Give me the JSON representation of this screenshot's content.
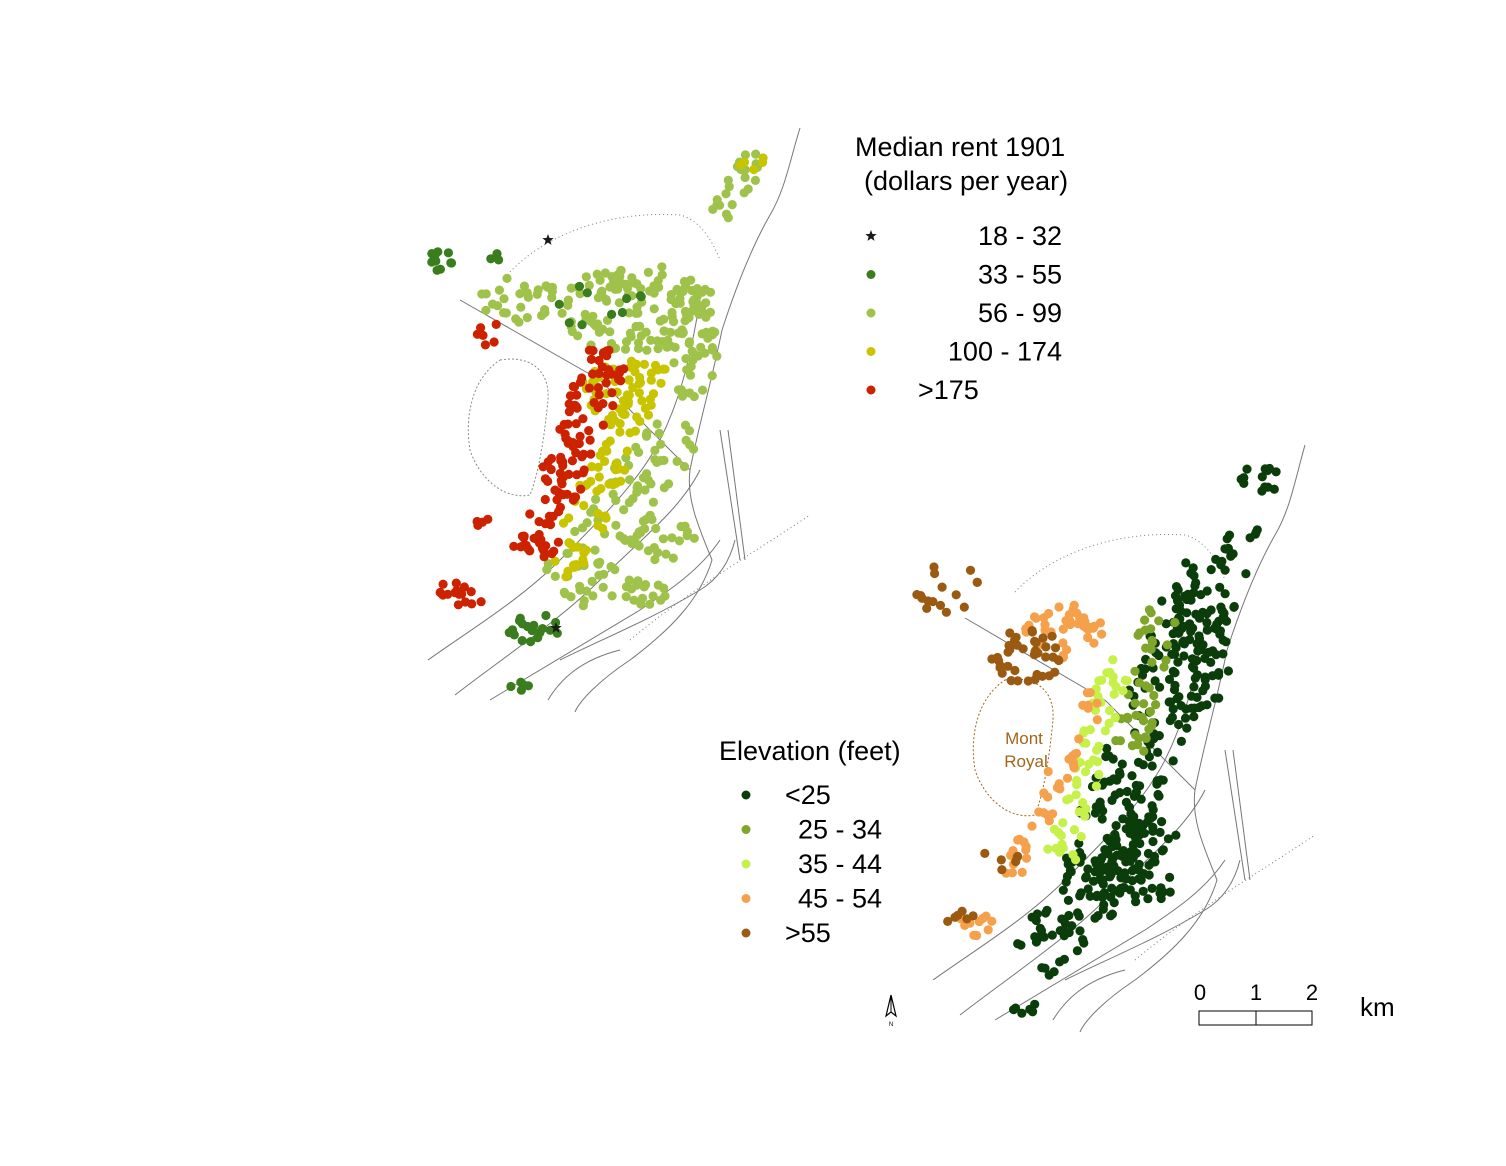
{
  "rent_legend": {
    "title_line1": "Median rent 1901",
    "title_line2": "(dollars per year)",
    "items": [
      {
        "label": "18 -   32",
        "color": "#1a1a1a",
        "symbol": "star"
      },
      {
        "label": "33 -   55",
        "color": "#3a7d1e",
        "symbol": "dot"
      },
      {
        "label": "56 -   99",
        "color": "#9fc24a",
        "symbol": "dot"
      },
      {
        "label": "100 - 174",
        "color": "#c8c400",
        "symbol": "dot"
      },
      {
        "label": ">175",
        "color": "#cc2200",
        "symbol": "dot"
      }
    ]
  },
  "elevation_legend": {
    "title": "Elevation (feet)",
    "items": [
      {
        "label": "<25",
        "color": "#0b3d0b"
      },
      {
        "label": "25 - 34",
        "color": "#7fa52a"
      },
      {
        "label": "35 - 44",
        "color": "#c6f04a"
      },
      {
        "label": "45 - 54",
        "color": "#f5a04a"
      },
      {
        "label": ">55",
        "color": "#9a5a12"
      }
    ]
  },
  "mountain_label_line1": "Mont",
  "mountain_label_line2": "Royal",
  "scale_bar": {
    "ticks": [
      "0",
      "1",
      "2"
    ],
    "unit": "km"
  },
  "north_arrow": {
    "label": "N",
    "icon": "north-arrow-icon"
  }
}
